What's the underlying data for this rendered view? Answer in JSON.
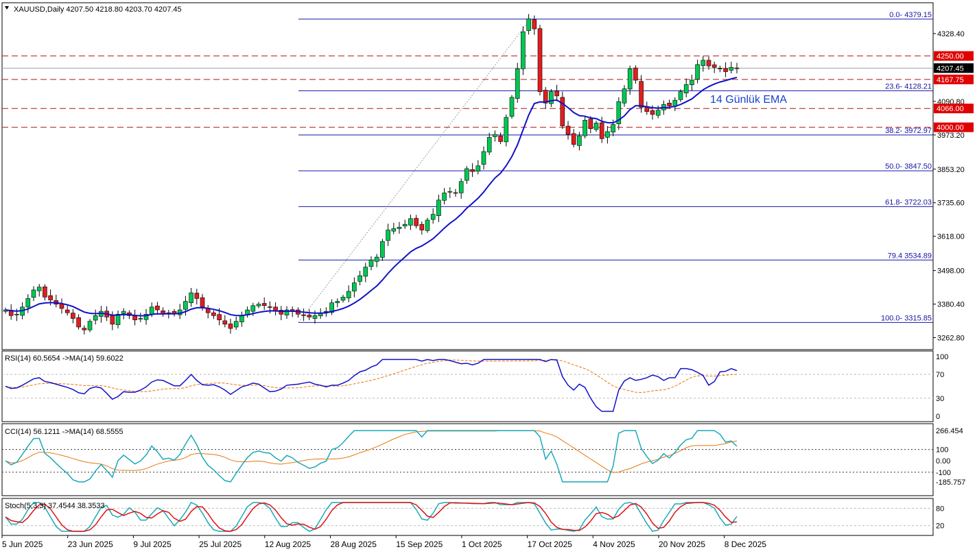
{
  "chart_data": {
    "type": "candlestick",
    "symbol": "XAUUSD",
    "timeframe": "Daily",
    "header_text": "XAUUSD,Daily  4207.50 4218.80 4203.70 4207.45",
    "ohlc": {
      "open": 4207.5,
      "high": 4218.8,
      "low": 4203.7,
      "close": 4207.45
    },
    "y_ticks": [
      4328.4,
      4090.8,
      3973.2,
      3853.2,
      3735.6,
      3618.0,
      3498.0,
      3380.4,
      3262.8
    ],
    "x_ticks": [
      "5 Jun 2025",
      "23 Jun 2025",
      "9 Jul 2025",
      "25 Jul 2025",
      "12 Aug 2025",
      "28 Aug 2025",
      "15 Sep 2025",
      "1 Oct 2025",
      "17 Oct 2025",
      "4 Nov 2025",
      "20 Nov 2025",
      "8 Dec 2025"
    ],
    "fibonacci": [
      {
        "label": "0.0- 4379.15",
        "value": 4379.15
      },
      {
        "label": "23.6- 4128.21",
        "value": 4128.21
      },
      {
        "label": "38.2- 3972.97",
        "value": 3972.97
      },
      {
        "label": "50.0- 3847.50",
        "value": 3847.5
      },
      {
        "label": "61.8- 3722.03",
        "value": 3722.03
      },
      {
        "label": "79.4 3534.89",
        "value": 3534.89
      },
      {
        "label": "100.0- 3315.85",
        "value": 3315.85
      }
    ],
    "levels": [
      {
        "label": "4250.00",
        "value": 4250.0
      },
      {
        "label": "4167.75",
        "value": 4167.75
      },
      {
        "label": "4066.00",
        "value": 4066.0
      },
      {
        "label": "4000.00",
        "value": 4000.0
      }
    ],
    "current_price": "4207.45",
    "ema_label": "14 Günlük EMA",
    "rsi": {
      "label": "RSI(14) 60.5654  ->MA(14) 59.6022",
      "levels": [
        "100",
        "70",
        "30",
        "0"
      ]
    },
    "cci": {
      "label": "CCI(14) 56.1211  ->MA(14) 68.5555",
      "levels": [
        "266.454",
        "100",
        "0.00",
        "-100",
        "-185.757"
      ]
    },
    "stoch": {
      "label": "Stoch(5,3,3) 37.4544 38.3533",
      "levels": [
        "80",
        "20"
      ]
    },
    "closes": [
      3360,
      3340,
      3345,
      3370,
      3400,
      3430,
      3440,
      3405,
      3395,
      3380,
      3365,
      3350,
      3330,
      3300,
      3290,
      3320,
      3340,
      3355,
      3335,
      3310,
      3345,
      3355,
      3340,
      3325,
      3330,
      3345,
      3370,
      3360,
      3345,
      3350,
      3345,
      3360,
      3390,
      3420,
      3400,
      3370,
      3350,
      3340,
      3325,
      3310,
      3295,
      3320,
      3340,
      3360,
      3375,
      3380,
      3375,
      3370,
      3355,
      3345,
      3360,
      3355,
      3345,
      3340,
      3335,
      3340,
      3350,
      3355,
      3385,
      3390,
      3405,
      3425,
      3455,
      3480,
      3510,
      3535,
      3545,
      3600,
      3640,
      3645,
      3650,
      3660,
      3680,
      3655,
      3640,
      3675,
      3695,
      3745,
      3770,
      3775,
      3770,
      3810,
      3855,
      3845,
      3865,
      3915,
      3965,
      3975,
      3950,
      4035,
      4105,
      4205,
      4335,
      4380,
      4345,
      4125,
      4085,
      4125,
      4110,
      4005,
      3975,
      3940,
      3970,
      4025,
      3995,
      4015,
      3960,
      3985,
      4010,
      4090,
      4135,
      4205,
      4165,
      4070,
      4055,
      4045,
      4060,
      4080,
      4075,
      4095,
      4125,
      4150,
      4165,
      4220,
      4235,
      4215,
      4210,
      4205,
      4195,
      4210,
      4207
    ]
  }
}
